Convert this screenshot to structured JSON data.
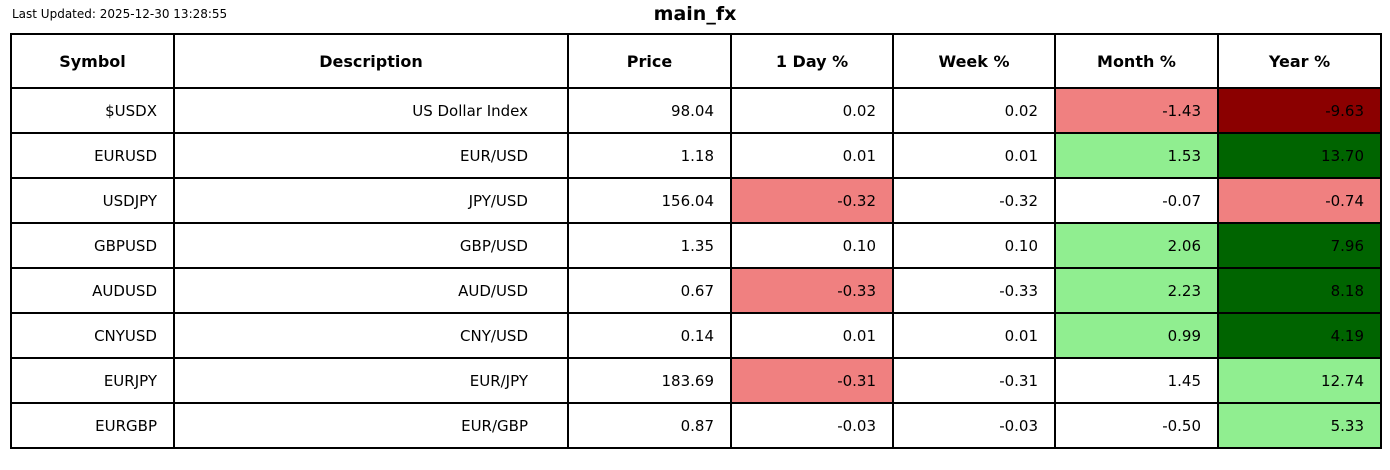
{
  "header": {
    "last_updated": "Last Updated: 2025-12-30 13:28:55",
    "title": "main_fx"
  },
  "colors": {
    "negative_bg": "#F08080",
    "strong_negative_bg": "#8B0000",
    "positive_bg": "#90EE90",
    "strong_positive_bg": "#006400",
    "grid": "#000000",
    "background": "#FFFFFF",
    "text": "#000000"
  },
  "chart_data": {
    "type": "table",
    "title": "main_fx",
    "columns": [
      "Symbol",
      "Description",
      "Price",
      "1 Day %",
      "Week %",
      "Month %",
      "Year %"
    ],
    "rows": [
      {
        "symbol": "$USDX",
        "description": "US Dollar Index",
        "price": "98.04",
        "day": {
          "value": "0.02",
          "bg": ""
        },
        "week": {
          "value": "0.02",
          "bg": ""
        },
        "month": {
          "value": "-1.43",
          "bg": "#F08080"
        },
        "year": {
          "value": "-9.63",
          "bg": "#8B0000"
        }
      },
      {
        "symbol": "EURUSD",
        "description": "EUR/USD",
        "price": "1.18",
        "day": {
          "value": "0.01",
          "bg": ""
        },
        "week": {
          "value": "0.01",
          "bg": ""
        },
        "month": {
          "value": "1.53",
          "bg": "#90EE90"
        },
        "year": {
          "value": "13.70",
          "bg": "#006400"
        }
      },
      {
        "symbol": "USDJPY",
        "description": "JPY/USD",
        "price": "156.04",
        "day": {
          "value": "-0.32",
          "bg": "#F08080"
        },
        "week": {
          "value": "-0.32",
          "bg": ""
        },
        "month": {
          "value": "-0.07",
          "bg": ""
        },
        "year": {
          "value": "-0.74",
          "bg": "#F08080"
        }
      },
      {
        "symbol": "GBPUSD",
        "description": "GBP/USD",
        "price": "1.35",
        "day": {
          "value": "0.10",
          "bg": ""
        },
        "week": {
          "value": "0.10",
          "bg": ""
        },
        "month": {
          "value": "2.06",
          "bg": "#90EE90"
        },
        "year": {
          "value": "7.96",
          "bg": "#006400"
        }
      },
      {
        "symbol": "AUDUSD",
        "description": "AUD/USD",
        "price": "0.67",
        "day": {
          "value": "-0.33",
          "bg": "#F08080"
        },
        "week": {
          "value": "-0.33",
          "bg": ""
        },
        "month": {
          "value": "2.23",
          "bg": "#90EE90"
        },
        "year": {
          "value": "8.18",
          "bg": "#006400"
        }
      },
      {
        "symbol": "CNYUSD",
        "description": "CNY/USD",
        "price": "0.14",
        "day": {
          "value": "0.01",
          "bg": ""
        },
        "week": {
          "value": "0.01",
          "bg": ""
        },
        "month": {
          "value": "0.99",
          "bg": "#90EE90"
        },
        "year": {
          "value": "4.19",
          "bg": "#006400"
        }
      },
      {
        "symbol": "EURJPY",
        "description": "EUR/JPY",
        "price": "183.69",
        "day": {
          "value": "-0.31",
          "bg": "#F08080"
        },
        "week": {
          "value": "-0.31",
          "bg": ""
        },
        "month": {
          "value": "1.45",
          "bg": ""
        },
        "year": {
          "value": "12.74",
          "bg": "#90EE90"
        }
      },
      {
        "symbol": "EURGBP",
        "description": "EUR/GBP",
        "price": "0.87",
        "day": {
          "value": "-0.03",
          "bg": ""
        },
        "week": {
          "value": "-0.03",
          "bg": ""
        },
        "month": {
          "value": "-0.50",
          "bg": ""
        },
        "year": {
          "value": "5.33",
          "bg": "#90EE90"
        }
      }
    ]
  }
}
